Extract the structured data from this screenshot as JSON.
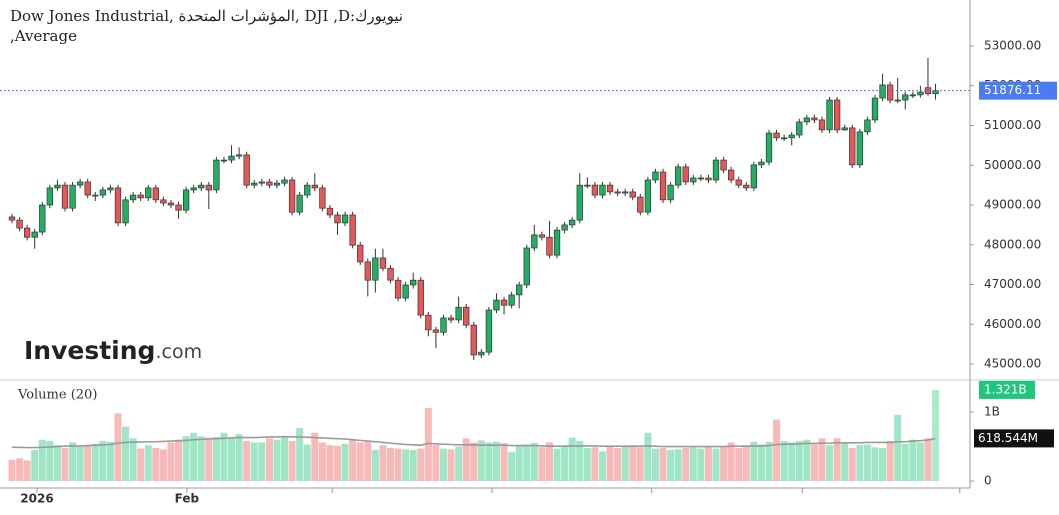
{
  "chart_data": {
    "type": "candlestick",
    "title": "نيويورك:DJI ,D ,المؤشرات المتحدة ,Dow Jones Industrial Average,",
    "watermark_main": "Investing",
    "watermark_suffix": ".com",
    "ohlc": [
      [
        48700,
        48780,
        48540,
        48620
      ],
      [
        48620,
        48700,
        48340,
        48420
      ],
      [
        48420,
        48500,
        48110,
        48190
      ],
      [
        48190,
        48400,
        47900,
        48320
      ],
      [
        48320,
        49080,
        48240,
        49000
      ],
      [
        49000,
        49510,
        48920,
        49430
      ],
      [
        49430,
        49640,
        49350,
        49500
      ],
      [
        49500,
        49580,
        48840,
        48920
      ],
      [
        48920,
        49580,
        48840,
        49500
      ],
      [
        49500,
        49660,
        49420,
        49580
      ],
      [
        49580,
        49660,
        49170,
        49250
      ],
      [
        49250,
        49330,
        49100,
        49250
      ],
      [
        49250,
        49460,
        49170,
        49380
      ],
      [
        49380,
        49510,
        49300,
        49430
      ],
      [
        49430,
        49510,
        48470,
        48550
      ],
      [
        48550,
        49210,
        48470,
        49130
      ],
      [
        49130,
        49330,
        49050,
        49250
      ],
      [
        49250,
        49330,
        49100,
        49180
      ],
      [
        49180,
        49510,
        49100,
        49430
      ],
      [
        49430,
        49510,
        49050,
        49130
      ],
      [
        49130,
        49210,
        48970,
        49050
      ],
      [
        49050,
        49130,
        48920,
        49000
      ],
      [
        49000,
        49080,
        48650,
        48870
      ],
      [
        48870,
        49460,
        48790,
        49380
      ],
      [
        49380,
        49510,
        49300,
        49430
      ],
      [
        49430,
        49580,
        49350,
        49500
      ],
      [
        49500,
        49580,
        48900,
        49380
      ],
      [
        49380,
        50210,
        49300,
        50130
      ],
      [
        50130,
        50210,
        50050,
        50130
      ],
      [
        50130,
        50500,
        50050,
        50230
      ],
      [
        50230,
        50450,
        50150,
        50260
      ],
      [
        50260,
        50340,
        49420,
        49500
      ],
      [
        49500,
        49630,
        49420,
        49550
      ],
      [
        49550,
        49660,
        49470,
        49580
      ],
      [
        49580,
        49660,
        49420,
        49500
      ],
      [
        49500,
        49630,
        49420,
        49550
      ],
      [
        49550,
        49710,
        49470,
        49630
      ],
      [
        49630,
        49710,
        48740,
        48820
      ],
      [
        48820,
        49330,
        48740,
        49250
      ],
      [
        49250,
        49580,
        49170,
        49500
      ],
      [
        49500,
        49800,
        49350,
        49430
      ],
      [
        49430,
        49510,
        48840,
        48920
      ],
      [
        48920,
        49000,
        48670,
        48750
      ],
      [
        48750,
        48830,
        48250,
        48550
      ],
      [
        48550,
        48830,
        48470,
        48750
      ],
      [
        48750,
        48830,
        47910,
        47990
      ],
      [
        47990,
        48070,
        47490,
        47570
      ],
      [
        47570,
        47650,
        46700,
        47110
      ],
      [
        47110,
        47900,
        46800,
        47670
      ],
      [
        47670,
        47900,
        47330,
        47410
      ],
      [
        47410,
        47490,
        47030,
        47110
      ],
      [
        47110,
        47190,
        46580,
        46660
      ],
      [
        46660,
        47070,
        46580,
        46990
      ],
      [
        46990,
        47300,
        46900,
        47110
      ],
      [
        47110,
        47190,
        46150,
        46230
      ],
      [
        46230,
        46310,
        45700,
        45860
      ],
      [
        45860,
        45940,
        45400,
        45800
      ],
      [
        45800,
        46240,
        45720,
        46160
      ],
      [
        46160,
        46240,
        46030,
        46110
      ],
      [
        46110,
        46700,
        46030,
        46430
      ],
      [
        46430,
        46510,
        45900,
        45980
      ],
      [
        45980,
        46060,
        45100,
        45230
      ],
      [
        45230,
        45380,
        45150,
        45300
      ],
      [
        45300,
        46440,
        45220,
        46360
      ],
      [
        46360,
        46780,
        46280,
        46610
      ],
      [
        46610,
        46690,
        46250,
        46480
      ],
      [
        46480,
        46820,
        46400,
        46740
      ],
      [
        46740,
        47070,
        46400,
        46990
      ],
      [
        46990,
        48000,
        46910,
        47920
      ],
      [
        47920,
        48500,
        47840,
        48250
      ],
      [
        48250,
        48330,
        48110,
        48190
      ],
      [
        48190,
        48600,
        47660,
        47740
      ],
      [
        47740,
        48450,
        47660,
        48370
      ],
      [
        48370,
        48580,
        48290,
        48500
      ],
      [
        48500,
        48700,
        48420,
        48620
      ],
      [
        48620,
        49800,
        48540,
        49500
      ],
      [
        49500,
        49700,
        49420,
        49500
      ],
      [
        49500,
        49580,
        49170,
        49250
      ],
      [
        49250,
        49580,
        49170,
        49500
      ],
      [
        49500,
        49580,
        49250,
        49330
      ],
      [
        49330,
        49410,
        49220,
        49300
      ],
      [
        49300,
        49410,
        49220,
        49330
      ],
      [
        49330,
        49410,
        49120,
        49200
      ],
      [
        49200,
        49280,
        48740,
        48820
      ],
      [
        48820,
        49710,
        48740,
        49630
      ],
      [
        49630,
        49910,
        49550,
        49830
      ],
      [
        49830,
        49910,
        49050,
        49130
      ],
      [
        49130,
        49580,
        49050,
        49500
      ],
      [
        49500,
        50040,
        49420,
        49960
      ],
      [
        49960,
        50040,
        49500,
        49580
      ],
      [
        49580,
        49760,
        49500,
        49680
      ],
      [
        49680,
        49760,
        49600,
        49680
      ],
      [
        49680,
        49760,
        49550,
        49630
      ],
      [
        49630,
        50210,
        49550,
        50130
      ],
      [
        50130,
        50210,
        49800,
        49880
      ],
      [
        49880,
        49960,
        49550,
        49630
      ],
      [
        49630,
        49710,
        49420,
        49500
      ],
      [
        49500,
        49580,
        49350,
        49430
      ],
      [
        49430,
        50090,
        49350,
        50010
      ],
      [
        50010,
        50160,
        49930,
        50080
      ],
      [
        50080,
        50890,
        50000,
        50810
      ],
      [
        50810,
        50890,
        50610,
        50690
      ],
      [
        50690,
        50770,
        50610,
        50690
      ],
      [
        50690,
        50840,
        50500,
        50760
      ],
      [
        50760,
        51170,
        50680,
        51090
      ],
      [
        51090,
        51270,
        51010,
        51190
      ],
      [
        51190,
        51270,
        51060,
        51140
      ],
      [
        51140,
        51220,
        50810,
        50890
      ],
      [
        50890,
        51720,
        50810,
        51640
      ],
      [
        51640,
        51720,
        50810,
        50890
      ],
      [
        50890,
        51020,
        50860,
        50940
      ],
      [
        50940,
        51020,
        49930,
        50010
      ],
      [
        50010,
        50920,
        49930,
        50840
      ],
      [
        50840,
        51220,
        50760,
        51140
      ],
      [
        51140,
        51770,
        51060,
        51690
      ],
      [
        51690,
        52300,
        51610,
        52020
      ],
      [
        52020,
        52100,
        51560,
        51640
      ],
      [
        51640,
        52200,
        51560,
        51640
      ],
      [
        51640,
        51850,
        51400,
        51770
      ],
      [
        51770,
        51850,
        51690,
        51770
      ],
      [
        51770,
        52000,
        51700,
        51840
      ],
      [
        51950,
        52700,
        51750,
        51800
      ],
      [
        51800,
        52050,
        51650,
        51876.11
      ]
    ],
    "ylim": [
      44650,
      54030
    ],
    "yticks": [
      {
        "value": 45000,
        "label": "45000.00"
      },
      {
        "value": 46000,
        "label": "46000.00"
      },
      {
        "value": 47000,
        "label": "47000.00"
      },
      {
        "value": 48000,
        "label": "48000.00"
      },
      {
        "value": 49000,
        "label": "49000.00"
      },
      {
        "value": 50000,
        "label": "50000.00"
      },
      {
        "value": 51000,
        "label": "51000.00"
      },
      {
        "value": 52000,
        "label": "52000.00"
      },
      {
        "value": 53000,
        "label": "53000.00"
      }
    ],
    "last_price": 51876.11,
    "last_price_color": "#4a7bf0",
    "up_color": "#21b062",
    "down_color": "#e5585a",
    "xticks": [
      {
        "value": 3.3,
        "label": "2026"
      },
      {
        "value": 23.1,
        "label": "Feb"
      }
    ],
    "xticks_unlabeled": [
      42.3,
      63.4,
      84.5,
      104.4,
      125.2
    ],
    "volume": {
      "label": "Volume (20)",
      "values": [
        310,
        330,
        300,
        450,
        600,
        580,
        520,
        480,
        560,
        500,
        520,
        540,
        580,
        570,
        980,
        790,
        620,
        470,
        520,
        480,
        460,
        560,
        600,
        650,
        700,
        650,
        630,
        640,
        700,
        620,
        680,
        580,
        560,
        560,
        620,
        600,
        640,
        580,
        770,
        530,
        700,
        560,
        520,
        510,
        540,
        600,
        560,
        570,
        450,
        520,
        480,
        470,
        460,
        450,
        470,
        1060,
        520,
        470,
        460,
        500,
        620,
        560,
        590,
        560,
        570,
        550,
        420,
        510,
        530,
        550,
        490,
        560,
        470,
        500,
        630,
        580,
        480,
        490,
        430,
        510,
        480,
        510,
        520,
        490,
        700,
        470,
        480,
        450,
        460,
        480,
        490,
        470,
        510,
        470,
        500,
        560,
        480,
        520,
        570,
        530,
        570,
        890,
        580,
        560,
        580,
        600,
        530,
        620,
        520,
        620,
        560,
        480,
        520,
        530,
        490,
        480,
        580,
        960,
        540,
        600,
        560,
        620,
        1321
      ],
      "value_label": "1.321B",
      "ma": [
        490,
        490,
        485,
        485,
        490,
        495,
        500,
        505,
        510,
        510,
        515,
        520,
        525,
        530,
        550,
        560,
        565,
        565,
        570,
        570,
        575,
        580,
        585,
        590,
        600,
        605,
        610,
        615,
        620,
        625,
        630,
        630,
        630,
        635,
        640,
        640,
        645,
        640,
        640,
        635,
        630,
        625,
        620,
        615,
        610,
        600,
        590,
        580,
        570,
        560,
        550,
        540,
        530,
        525,
        520,
        545,
        540,
        535,
        530,
        525,
        525,
        525,
        520,
        520,
        520,
        520,
        515,
        515,
        515,
        515,
        510,
        505,
        505,
        505,
        510,
        510,
        510,
        510,
        505,
        505,
        505,
        505,
        505,
        505,
        510,
        505,
        500,
        500,
        500,
        500,
        500,
        500,
        500,
        500,
        500,
        505,
        505,
        505,
        510,
        510,
        515,
        530,
        535,
        535,
        540,
        545,
        545,
        550,
        550,
        555,
        555,
        555,
        555,
        560,
        560,
        560,
        560,
        570,
        570,
        580,
        585,
        595,
        618.544
      ],
      "ma_label": "618.544M",
      "ma_color": "#9a9a9a",
      "ylim": [
        -100,
        1450
      ],
      "yticks": [
        0,
        {
          "value": 1000,
          "label": "1B"
        }
      ],
      "up_color": "#9fe6c6",
      "down_color": "#f8b9b9",
      "last_color": "#1fc77e"
    }
  }
}
